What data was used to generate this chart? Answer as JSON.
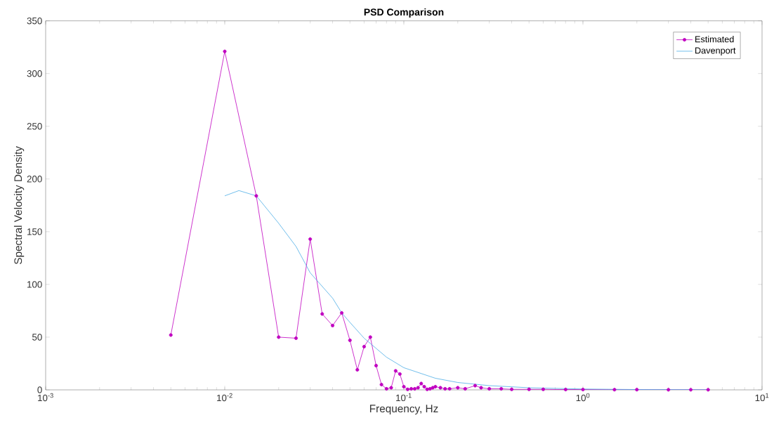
{
  "chart_data": {
    "type": "line",
    "title": "PSD Comparison",
    "xlabel": "Frequency, Hz",
    "ylabel": "Spectral Velocity Density",
    "log": "x",
    "xlim": [
      0.001,
      10
    ],
    "ylim": [
      0,
      350
    ],
    "xticks": [
      {
        "value": 0.001,
        "label": "10$^{-3}$"
      },
      {
        "value": 0.01,
        "label": "10$^{-2}$"
      },
      {
        "value": 0.1,
        "label": "10$^{-1}$"
      },
      {
        "value": 1,
        "label": "10$^{0}$"
      },
      {
        "value": 10,
        "label": "10$^{1}$"
      }
    ],
    "yticks": [
      0,
      50,
      100,
      150,
      200,
      250,
      300,
      350
    ],
    "grid": false,
    "legend": "top right",
    "series": [
      {
        "name": "Estimated",
        "color": "#c000c0",
        "marker": "circle",
        "x": [
          0.005,
          0.01,
          0.015,
          0.02,
          0.025,
          0.03,
          0.035,
          0.04,
          0.045,
          0.05,
          0.055,
          0.06,
          0.065,
          0.07,
          0.075,
          0.08,
          0.085,
          0.09,
          0.095,
          0.1,
          0.105,
          0.11,
          0.115,
          0.12,
          0.125,
          0.13,
          0.135,
          0.14,
          0.145,
          0.15,
          0.16,
          0.17,
          0.18,
          0.2,
          0.22,
          0.25,
          0.27,
          0.3,
          0.35,
          0.4,
          0.5,
          0.6,
          0.8,
          1,
          1.5,
          2,
          3,
          4,
          5
        ],
        "values": [
          52,
          321,
          184,
          50,
          49,
          143,
          72,
          61,
          73,
          47,
          19,
          41,
          50,
          23,
          5,
          1,
          2,
          18,
          15,
          3,
          0.5,
          1,
          1,
          2,
          6,
          3,
          0.5,
          1,
          2,
          3,
          2,
          1,
          1,
          2,
          1,
          4,
          2,
          1,
          1,
          0.5,
          0.5,
          0.5,
          0.3,
          0.3,
          0.2,
          0.2,
          0.1,
          0.1,
          0.1
        ]
      },
      {
        "name": "Davenport",
        "color": "#4dade6",
        "marker": "none",
        "x": [
          0.01,
          0.012,
          0.015,
          0.02,
          0.025,
          0.03,
          0.04,
          0.045,
          0.05,
          0.06,
          0.08,
          0.1,
          0.15,
          0.2,
          0.3,
          0.5,
          1,
          2,
          5
        ],
        "values": [
          184,
          189,
          184,
          158,
          136,
          111,
          87,
          73,
          64,
          49,
          31,
          21,
          11,
          7,
          4,
          2,
          0.8,
          0.3,
          0.1
        ]
      }
    ]
  }
}
